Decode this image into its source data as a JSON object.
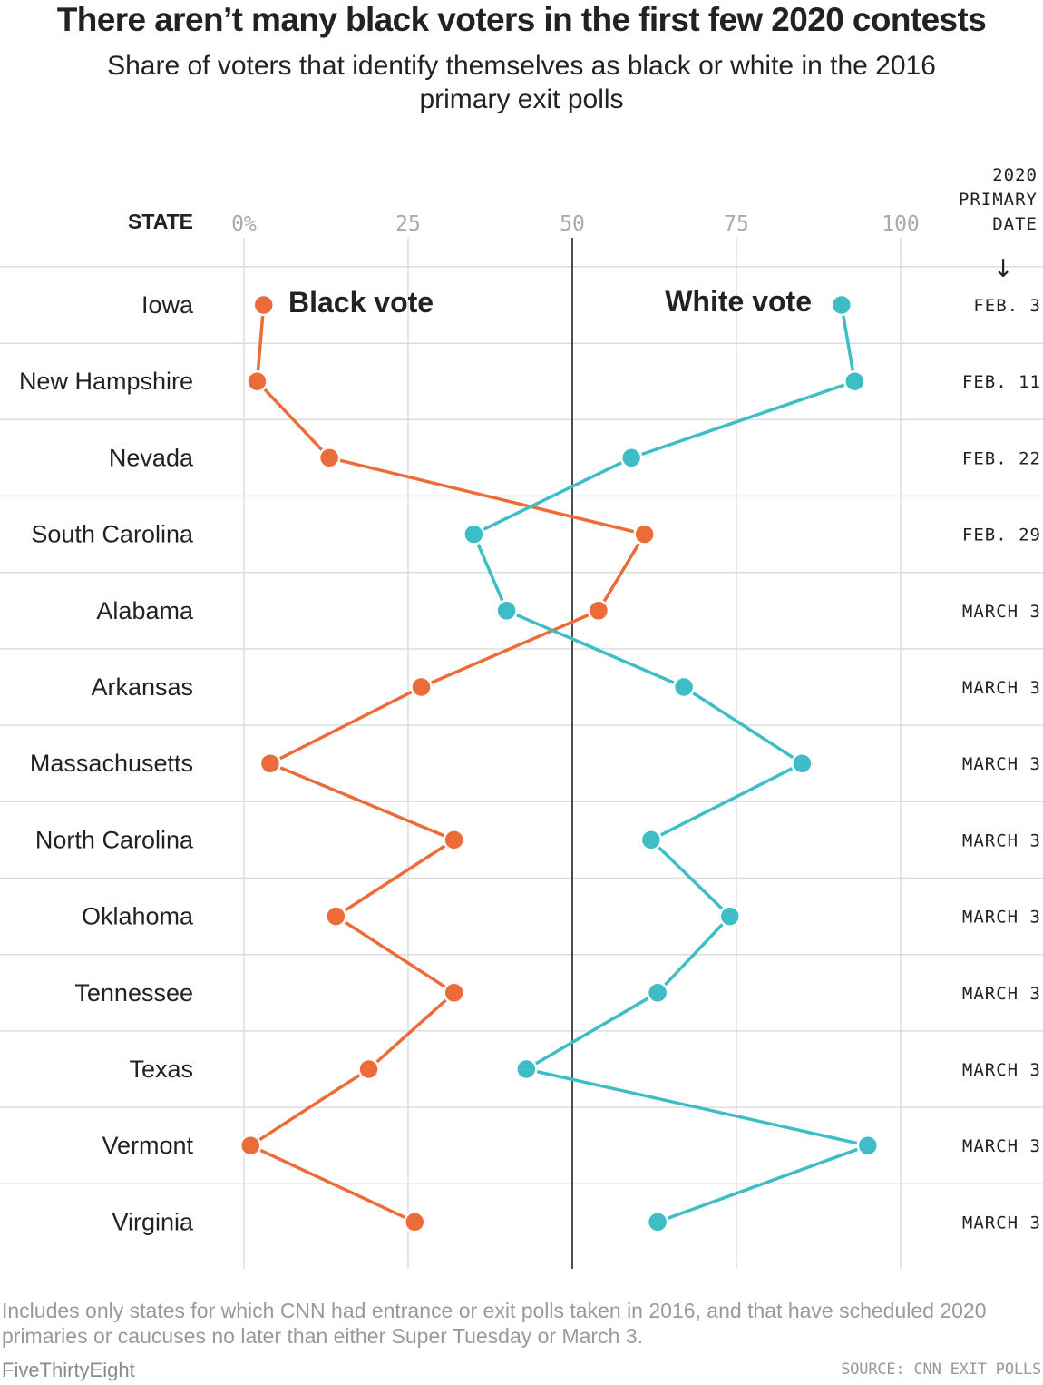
{
  "title": "There aren’t many black voters in the first few 2020 contests",
  "subtitle": "Share of voters that identify themselves as black or white in the 2016 primary exit polls",
  "colors": {
    "black_vote": "#ec6c39",
    "white_vote": "#3ebdc6",
    "grid": "#dddddd",
    "midline": "#222222"
  },
  "notes": "Includes only states for which CNN had entrance or exit polls taken in 2016, and that have scheduled 2020 primaries or caucuses no later than either Super Tuesday or March 3.",
  "brand": "FiveThirtyEight",
  "source": "SOURCE: CNN EXIT POLLS",
  "chart_data": {
    "type": "dot-line",
    "state_header": "STATE",
    "date_header": [
      "2020",
      "PRIMARY",
      "DATE"
    ],
    "date_arrow": "↓",
    "x_ticks": [
      "0%",
      "25",
      "50",
      "75",
      "100"
    ],
    "x_tick_values": [
      0,
      25,
      50,
      75,
      100
    ],
    "xlim": [
      0,
      100
    ],
    "reference_value": 50,
    "categories": [
      "Iowa",
      "New Hampshire",
      "Nevada",
      "South Carolina",
      "Alabama",
      "Arkansas",
      "Massachusetts",
      "North Carolina",
      "Oklahoma",
      "Tennessee",
      "Texas",
      "Vermont",
      "Virginia"
    ],
    "dates": [
      "FEB. 3",
      "FEB. 11",
      "FEB. 22",
      "FEB. 29",
      "MARCH 3",
      "MARCH 3",
      "MARCH 3",
      "MARCH 3",
      "MARCH 3",
      "MARCH 3",
      "MARCH 3",
      "MARCH 3",
      "MARCH 3"
    ],
    "series": [
      {
        "name": "Black vote",
        "color": "#ec6c39",
        "values": [
          3,
          2,
          13,
          61,
          54,
          27,
          4,
          32,
          14,
          32,
          19,
          1,
          26
        ]
      },
      {
        "name": "White vote",
        "color": "#3ebdc6",
        "values": [
          91,
          93,
          59,
          35,
          40,
          67,
          85,
          62,
          74,
          63,
          43,
          95,
          63
        ]
      }
    ]
  }
}
